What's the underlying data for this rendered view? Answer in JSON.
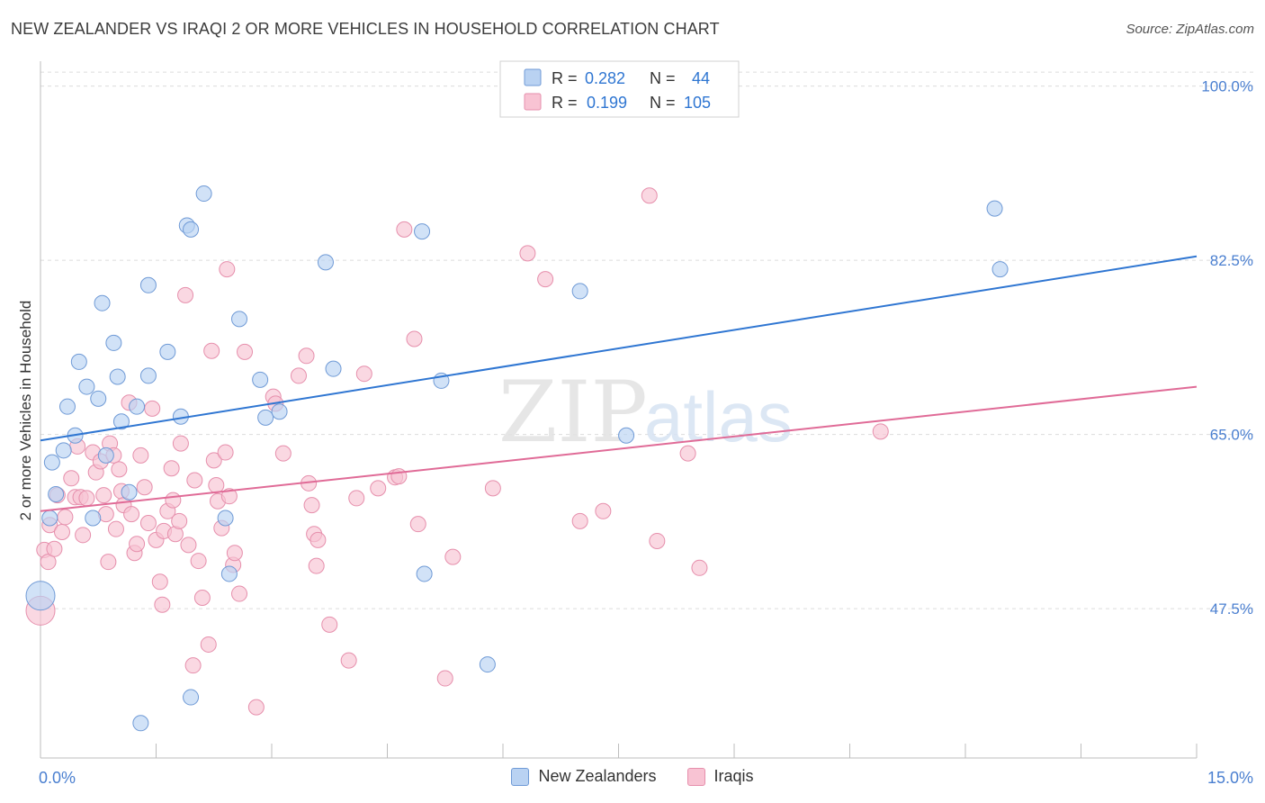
{
  "header": {
    "title": "NEW ZEALANDER VS IRAQI 2 OR MORE VEHICLES IN HOUSEHOLD CORRELATION CHART",
    "source": "Source: ZipAtlas.com"
  },
  "watermark": {
    "zip": "ZIP",
    "atlas": "atlas"
  },
  "colors": {
    "blue_fill": "#b9d2f2",
    "blue_stroke": "#6f9ad6",
    "blue_line": "#2f76d2",
    "pink_fill": "#f8c3d3",
    "pink_stroke": "#e68fac",
    "pink_line": "#e06b97",
    "axis_label": "#4a7fd0",
    "grid": "#dcdcdc"
  },
  "legend_top": {
    "rows": [
      {
        "series": "New Zealanders",
        "r_label": "R =",
        "r_value": "0.282",
        "n_label": "N =",
        "n_value": "44"
      },
      {
        "series": "Iraqis",
        "r_label": "R =",
        "r_value": "0.199",
        "n_label": "N =",
        "n_value": "105"
      }
    ]
  },
  "legend_bottom": {
    "items": [
      "New Zealanders",
      "Iraqis"
    ]
  },
  "chart_data": {
    "type": "scatter",
    "title": "NEW ZEALANDER VS IRAQI 2 OR MORE VEHICLES IN HOUSEHOLD CORRELATION CHART",
    "xlabel": "",
    "ylabel": "2 or more Vehicles in Household",
    "xlim": [
      0,
      15
    ],
    "ylim": [
      32.5,
      102.5
    ],
    "x_tick_labels": [
      "0.0%",
      "15.0%"
    ],
    "y_ticks": [
      47.5,
      65.0,
      82.5,
      100.0
    ],
    "y_tick_labels": [
      "47.5%",
      "65.0%",
      "82.5%",
      "100.0%"
    ],
    "grid": true,
    "legend": "top-center and bottom",
    "series": [
      {
        "name": "New Zealanders",
        "r": 0.282,
        "n": 44,
        "trend": {
          "x": [
            0,
            15
          ],
          "y": [
            64.4,
            82.9
          ]
        },
        "points": [
          {
            "x": 0.0,
            "y": 48.8,
            "big": true
          },
          {
            "x": 0.12,
            "y": 56.6
          },
          {
            "x": 0.15,
            "y": 62.2
          },
          {
            "x": 0.2,
            "y": 59.0
          },
          {
            "x": 0.3,
            "y": 63.4
          },
          {
            "x": 0.35,
            "y": 67.8
          },
          {
            "x": 0.45,
            "y": 64.9
          },
          {
            "x": 0.5,
            "y": 72.3
          },
          {
            "x": 0.6,
            "y": 69.8
          },
          {
            "x": 0.68,
            "y": 56.6
          },
          {
            "x": 0.75,
            "y": 68.6
          },
          {
            "x": 0.8,
            "y": 78.2
          },
          {
            "x": 0.85,
            "y": 62.9
          },
          {
            "x": 0.95,
            "y": 74.2
          },
          {
            "x": 1.0,
            "y": 70.8
          },
          {
            "x": 1.05,
            "y": 66.3
          },
          {
            "x": 1.15,
            "y": 59.2
          },
          {
            "x": 1.25,
            "y": 67.8
          },
          {
            "x": 1.3,
            "y": 36.0
          },
          {
            "x": 1.4,
            "y": 80.0
          },
          {
            "x": 1.4,
            "y": 70.9
          },
          {
            "x": 1.65,
            "y": 73.3
          },
          {
            "x": 1.82,
            "y": 66.8
          },
          {
            "x": 1.9,
            "y": 86.0
          },
          {
            "x": 1.95,
            "y": 85.6
          },
          {
            "x": 1.95,
            "y": 38.6
          },
          {
            "x": 2.12,
            "y": 89.2
          },
          {
            "x": 2.4,
            "y": 56.6
          },
          {
            "x": 2.45,
            "y": 51.0
          },
          {
            "x": 2.58,
            "y": 76.6
          },
          {
            "x": 2.85,
            "y": 70.5
          },
          {
            "x": 2.92,
            "y": 66.7
          },
          {
            "x": 3.1,
            "y": 67.3
          },
          {
            "x": 3.7,
            "y": 82.3
          },
          {
            "x": 3.8,
            "y": 71.6
          },
          {
            "x": 4.95,
            "y": 85.4
          },
          {
            "x": 4.98,
            "y": 51.0
          },
          {
            "x": 5.2,
            "y": 70.4
          },
          {
            "x": 5.8,
            "y": 41.9
          },
          {
            "x": 7.0,
            "y": 79.4
          },
          {
            "x": 7.6,
            "y": 64.9
          },
          {
            "x": 12.38,
            "y": 87.7
          },
          {
            "x": 12.45,
            "y": 81.6
          }
        ]
      },
      {
        "name": "Iraqis",
        "r": 0.199,
        "n": 105,
        "trend": {
          "x": [
            0,
            15
          ],
          "y": [
            57.3,
            69.8
          ]
        },
        "points": [
          {
            "x": 0.0,
            "y": 47.3,
            "big": true
          },
          {
            "x": 0.05,
            "y": 53.4
          },
          {
            "x": 0.1,
            "y": 52.2
          },
          {
            "x": 0.12,
            "y": 55.9
          },
          {
            "x": 0.18,
            "y": 53.5
          },
          {
            "x": 0.22,
            "y": 58.9
          },
          {
            "x": 0.28,
            "y": 55.2
          },
          {
            "x": 0.32,
            "y": 56.7
          },
          {
            "x": 0.4,
            "y": 60.6
          },
          {
            "x": 0.45,
            "y": 58.7
          },
          {
            "x": 0.48,
            "y": 63.8
          },
          {
            "x": 0.52,
            "y": 58.7
          },
          {
            "x": 0.55,
            "y": 54.9
          },
          {
            "x": 0.6,
            "y": 58.6
          },
          {
            "x": 0.68,
            "y": 63.2
          },
          {
            "x": 0.72,
            "y": 61.2
          },
          {
            "x": 0.78,
            "y": 62.3
          },
          {
            "x": 0.82,
            "y": 58.9
          },
          {
            "x": 0.85,
            "y": 57.0
          },
          {
            "x": 0.88,
            "y": 52.2
          },
          {
            "x": 0.9,
            "y": 64.1
          },
          {
            "x": 0.95,
            "y": 62.9
          },
          {
            "x": 0.98,
            "y": 55.5
          },
          {
            "x": 1.02,
            "y": 61.5
          },
          {
            "x": 1.05,
            "y": 59.3
          },
          {
            "x": 1.08,
            "y": 57.9
          },
          {
            "x": 1.15,
            "y": 68.2
          },
          {
            "x": 1.18,
            "y": 57.0
          },
          {
            "x": 1.22,
            "y": 53.1
          },
          {
            "x": 1.25,
            "y": 54.0
          },
          {
            "x": 1.3,
            "y": 62.9
          },
          {
            "x": 1.35,
            "y": 59.7
          },
          {
            "x": 1.4,
            "y": 56.1
          },
          {
            "x": 1.45,
            "y": 67.6
          },
          {
            "x": 1.5,
            "y": 54.4
          },
          {
            "x": 1.55,
            "y": 50.2
          },
          {
            "x": 1.58,
            "y": 47.9
          },
          {
            "x": 1.6,
            "y": 55.3
          },
          {
            "x": 1.65,
            "y": 57.3
          },
          {
            "x": 1.7,
            "y": 61.6
          },
          {
            "x": 1.72,
            "y": 58.4
          },
          {
            "x": 1.75,
            "y": 55.0
          },
          {
            "x": 1.8,
            "y": 56.3
          },
          {
            "x": 1.82,
            "y": 64.1
          },
          {
            "x": 1.88,
            "y": 79.0
          },
          {
            "x": 1.92,
            "y": 53.9
          },
          {
            "x": 1.98,
            "y": 41.8
          },
          {
            "x": 2.0,
            "y": 60.4
          },
          {
            "x": 2.05,
            "y": 52.3
          },
          {
            "x": 2.1,
            "y": 48.6
          },
          {
            "x": 2.18,
            "y": 43.9
          },
          {
            "x": 2.22,
            "y": 73.4
          },
          {
            "x": 2.25,
            "y": 62.4
          },
          {
            "x": 2.28,
            "y": 59.9
          },
          {
            "x": 2.3,
            "y": 58.3
          },
          {
            "x": 2.35,
            "y": 55.6
          },
          {
            "x": 2.4,
            "y": 63.2
          },
          {
            "x": 2.42,
            "y": 81.6
          },
          {
            "x": 2.45,
            "y": 58.8
          },
          {
            "x": 2.5,
            "y": 51.9
          },
          {
            "x": 2.52,
            "y": 53.1
          },
          {
            "x": 2.58,
            "y": 49.0
          },
          {
            "x": 2.65,
            "y": 73.3
          },
          {
            "x": 2.8,
            "y": 37.6
          },
          {
            "x": 3.02,
            "y": 68.8
          },
          {
            "x": 3.05,
            "y": 68.1
          },
          {
            "x": 3.15,
            "y": 63.1
          },
          {
            "x": 3.35,
            "y": 70.9
          },
          {
            "x": 3.45,
            "y": 72.9
          },
          {
            "x": 3.48,
            "y": 60.1
          },
          {
            "x": 3.52,
            "y": 57.9
          },
          {
            "x": 3.55,
            "y": 55.0
          },
          {
            "x": 3.58,
            "y": 51.8
          },
          {
            "x": 3.6,
            "y": 54.4
          },
          {
            "x": 3.75,
            "y": 45.9
          },
          {
            "x": 4.0,
            "y": 42.3
          },
          {
            "x": 4.1,
            "y": 58.6
          },
          {
            "x": 4.2,
            "y": 71.1
          },
          {
            "x": 4.38,
            "y": 59.6
          },
          {
            "x": 4.6,
            "y": 60.7
          },
          {
            "x": 4.65,
            "y": 60.8
          },
          {
            "x": 4.72,
            "y": 85.6
          },
          {
            "x": 4.85,
            "y": 74.6
          },
          {
            "x": 4.9,
            "y": 56.0
          },
          {
            "x": 5.25,
            "y": 40.5
          },
          {
            "x": 5.35,
            "y": 52.7
          },
          {
            "x": 5.87,
            "y": 59.6
          },
          {
            "x": 6.32,
            "y": 83.2
          },
          {
            "x": 6.55,
            "y": 80.6
          },
          {
            "x": 7.0,
            "y": 56.3
          },
          {
            "x": 7.3,
            "y": 57.3
          },
          {
            "x": 7.9,
            "y": 89.0
          },
          {
            "x": 8.0,
            "y": 54.3
          },
          {
            "x": 8.4,
            "y": 63.1
          },
          {
            "x": 8.55,
            "y": 51.6
          },
          {
            "x": 10.9,
            "y": 65.3
          }
        ]
      }
    ]
  }
}
